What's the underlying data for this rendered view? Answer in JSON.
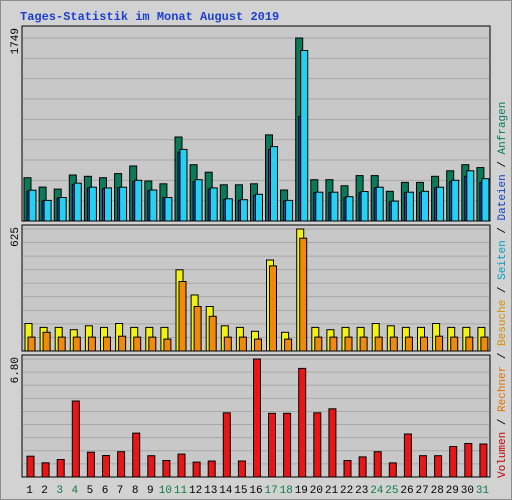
{
  "title": "Tages-Statistik im Monat August 2019",
  "colors": {
    "weekday_label": "#000000",
    "weekend_label": "#0e7a4e",
    "separator": "#000000"
  },
  "chart_data": [
    {
      "type": "bar",
      "title": "",
      "ymax_label": "1749",
      "ylim": [
        0,
        1749
      ],
      "grid": true,
      "categories": [
        "1",
        "2",
        "3",
        "4",
        "5",
        "6",
        "7",
        "8",
        "9",
        "10",
        "11",
        "12",
        "13",
        "14",
        "15",
        "16",
        "17",
        "18",
        "19",
        "20",
        "21",
        "22",
        "23",
        "24",
        "25",
        "26",
        "27",
        "28",
        "29",
        "30",
        "31"
      ],
      "weekend_days": [
        3,
        4,
        10,
        11,
        17,
        18,
        24,
        25,
        31
      ],
      "series": [
        {
          "name": "Anfragen",
          "color": "#0a7b5a",
          "values": [
            414,
            324,
            305,
            440,
            427,
            414,
            453,
            526,
            382,
            356,
            803,
            538,
            466,
            346,
            346,
            356,
            823,
            296,
            1749,
            395,
            395,
            336,
            434,
            434,
            284,
            369,
            369,
            427,
            480,
            538,
            510
          ]
        },
        {
          "name": "Dateien",
          "color": "#1848d0",
          "values": [
            284,
            192,
            219,
            350,
            316,
            310,
            316,
            376,
            290,
            223,
            658,
            376,
            304,
            204,
            198,
            245,
            684,
            192,
            1000,
            270,
            270,
            223,
            270,
            316,
            183,
            270,
            270,
            316,
            376,
            427,
            369
          ]
        },
        {
          "name": "Seiten",
          "color": "#26d0f0",
          "values": [
            294,
            197,
            225,
            362,
            323,
            316,
            323,
            389,
            296,
            225,
            684,
            395,
            316,
            212,
            204,
            255,
            711,
            197,
            1630,
            275,
            275,
            232,
            282,
            323,
            190,
            275,
            284,
            323,
            389,
            480,
            404
          ]
        }
      ]
    },
    {
      "type": "bar",
      "title": "",
      "ymax_label": "625",
      "ylim": [
        0,
        625
      ],
      "grid": true,
      "categories": [
        "1",
        "2",
        "3",
        "4",
        "5",
        "6",
        "7",
        "8",
        "9",
        "10",
        "11",
        "12",
        "13",
        "14",
        "15",
        "16",
        "17",
        "18",
        "19",
        "20",
        "21",
        "22",
        "23",
        "24",
        "25",
        "26",
        "27",
        "28",
        "29",
        "30",
        "31"
      ],
      "series": [
        {
          "name": "Besuche",
          "color": "#f2f212",
          "values": [
            141,
            121,
            121,
            109,
            129,
            121,
            141,
            121,
            121,
            121,
            416,
            287,
            228,
            129,
            121,
            101,
            466,
            96,
            625,
            121,
            109,
            121,
            121,
            141,
            129,
            121,
            121,
            141,
            121,
            121,
            121
          ]
        },
        {
          "name": "Rechner",
          "color": "#f08a0c",
          "values": [
            71,
            96,
            71,
            71,
            71,
            71,
            76,
            71,
            71,
            61,
            356,
            228,
            178,
            71,
            71,
            61,
            436,
            61,
            578,
            71,
            71,
            71,
            71,
            71,
            71,
            71,
            71,
            76,
            71,
            71,
            71
          ]
        }
      ]
    },
    {
      "type": "bar",
      "title": "",
      "ymax_label": "6.80",
      "ylim": [
        0,
        6.8
      ],
      "grid": true,
      "categories": [
        "1",
        "2",
        "3",
        "4",
        "5",
        "6",
        "7",
        "8",
        "9",
        "10",
        "11",
        "12",
        "13",
        "14",
        "15",
        "16",
        "17",
        "18",
        "19",
        "20",
        "21",
        "22",
        "23",
        "24",
        "25",
        "26",
        "27",
        "28",
        "29",
        "30",
        "31"
      ],
      "series": [
        {
          "name": "Volumen",
          "color": "#e81616",
          "values": [
            1.2,
            0.82,
            1.01,
            4.38,
            1.43,
            1.24,
            1.46,
            2.53,
            1.23,
            0.95,
            1.32,
            0.86,
            0.92,
            3.7,
            0.92,
            6.8,
            3.67,
            3.67,
            6.26,
            3.7,
            3.93,
            0.95,
            1.16,
            1.46,
            0.81,
            2.48,
            1.23,
            1.23,
            1.76,
            1.93,
            1.9
          ]
        }
      ]
    }
  ],
  "legend": [
    {
      "label": "Volumen",
      "color": "#c00000"
    },
    {
      "label": "Rechner",
      "color": "#e07000"
    },
    {
      "label": "Besuche",
      "color": "#d09000"
    },
    {
      "label": "Seiten",
      "color": "#00a0c0"
    },
    {
      "label": "Dateien",
      "color": "#1040c0"
    },
    {
      "label": "Anfragen",
      "color": "#0a7b5a"
    }
  ]
}
